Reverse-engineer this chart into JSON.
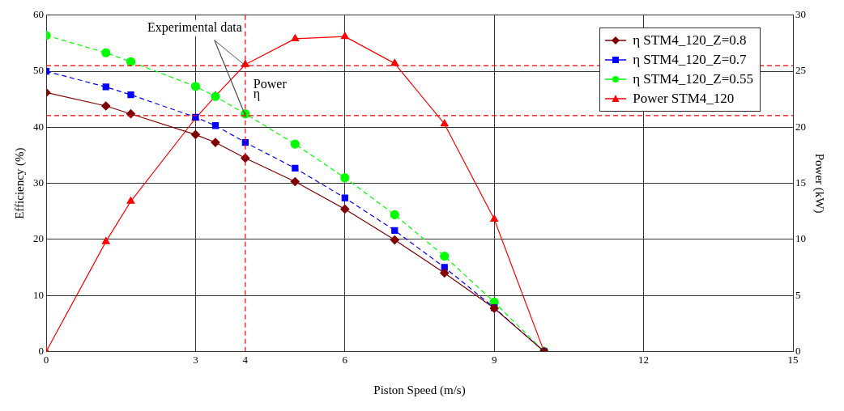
{
  "chart_data": {
    "type": "line",
    "xlabel": "Piston Speed (m/s)",
    "ylabel": "Efficiency (%)",
    "y2label": "Power (kW)",
    "x": [
      0,
      1.2,
      1.7,
      3,
      3.4,
      4,
      5,
      6,
      7,
      8,
      9,
      10
    ],
    "series": [
      {
        "name": "η STM4_120_Z=0.8",
        "color": "#800000",
        "marker": "diamond",
        "line_style": "solid",
        "values": [
          46.2,
          43.8,
          42.4,
          38.7,
          37.3,
          34.5,
          30.3,
          25.4,
          19.9,
          14,
          7.7,
          0
        ]
      },
      {
        "name": "η STM4_120_Z=0.7",
        "color": "#0000ff",
        "marker": "square",
        "line_style": "dashed",
        "values": [
          50,
          47.2,
          45.8,
          41.8,
          40.3,
          37.3,
          32.7,
          27.4,
          21.6,
          15,
          7.8,
          0
        ]
      },
      {
        "name": "η STM4_120_Z=0.55",
        "color": "#00ff00",
        "marker": "circle",
        "line_style": "dashed",
        "values": [
          56.4,
          53.3,
          51.7,
          47.3,
          45.5,
          42.4,
          37,
          31,
          24.4,
          17,
          8.8,
          0
        ]
      },
      {
        "name": "Power STM4_120",
        "color": "#ff0000",
        "marker": "triangle",
        "line_style": "solid",
        "axis": "y2",
        "values": [
          0,
          9.8,
          13.4,
          20.8,
          22.8,
          25.6,
          27.9,
          28.1,
          25.7,
          20.3,
          11.8,
          0
        ]
      }
    ],
    "xlim": [
      0,
      15
    ],
    "xticks": [
      0,
      3,
      4,
      6,
      9,
      12,
      15
    ],
    "ylim": [
      0,
      60
    ],
    "yticks": [
      0,
      10,
      20,
      30,
      40,
      50,
      60
    ],
    "y2lim": [
      0,
      30
    ],
    "y2ticks": [
      0,
      5,
      10,
      15,
      20,
      25,
      30
    ],
    "ref_lines": [
      {
        "axis": "y2",
        "value": 25.5,
        "label": "Power",
        "color": "#ff0000",
        "line_style": "dashed"
      },
      {
        "axis": "y",
        "value": 42.1,
        "label": "η",
        "color": "#ff0000",
        "line_style": "dashed"
      },
      {
        "axis": "x",
        "value": 4,
        "color": "#ff0000",
        "line_style": "dashed"
      }
    ],
    "annotations": [
      {
        "text": "Experimental data",
        "x": 4,
        "y": 42.1
      }
    ],
    "grid": true,
    "legend": "top right"
  }
}
